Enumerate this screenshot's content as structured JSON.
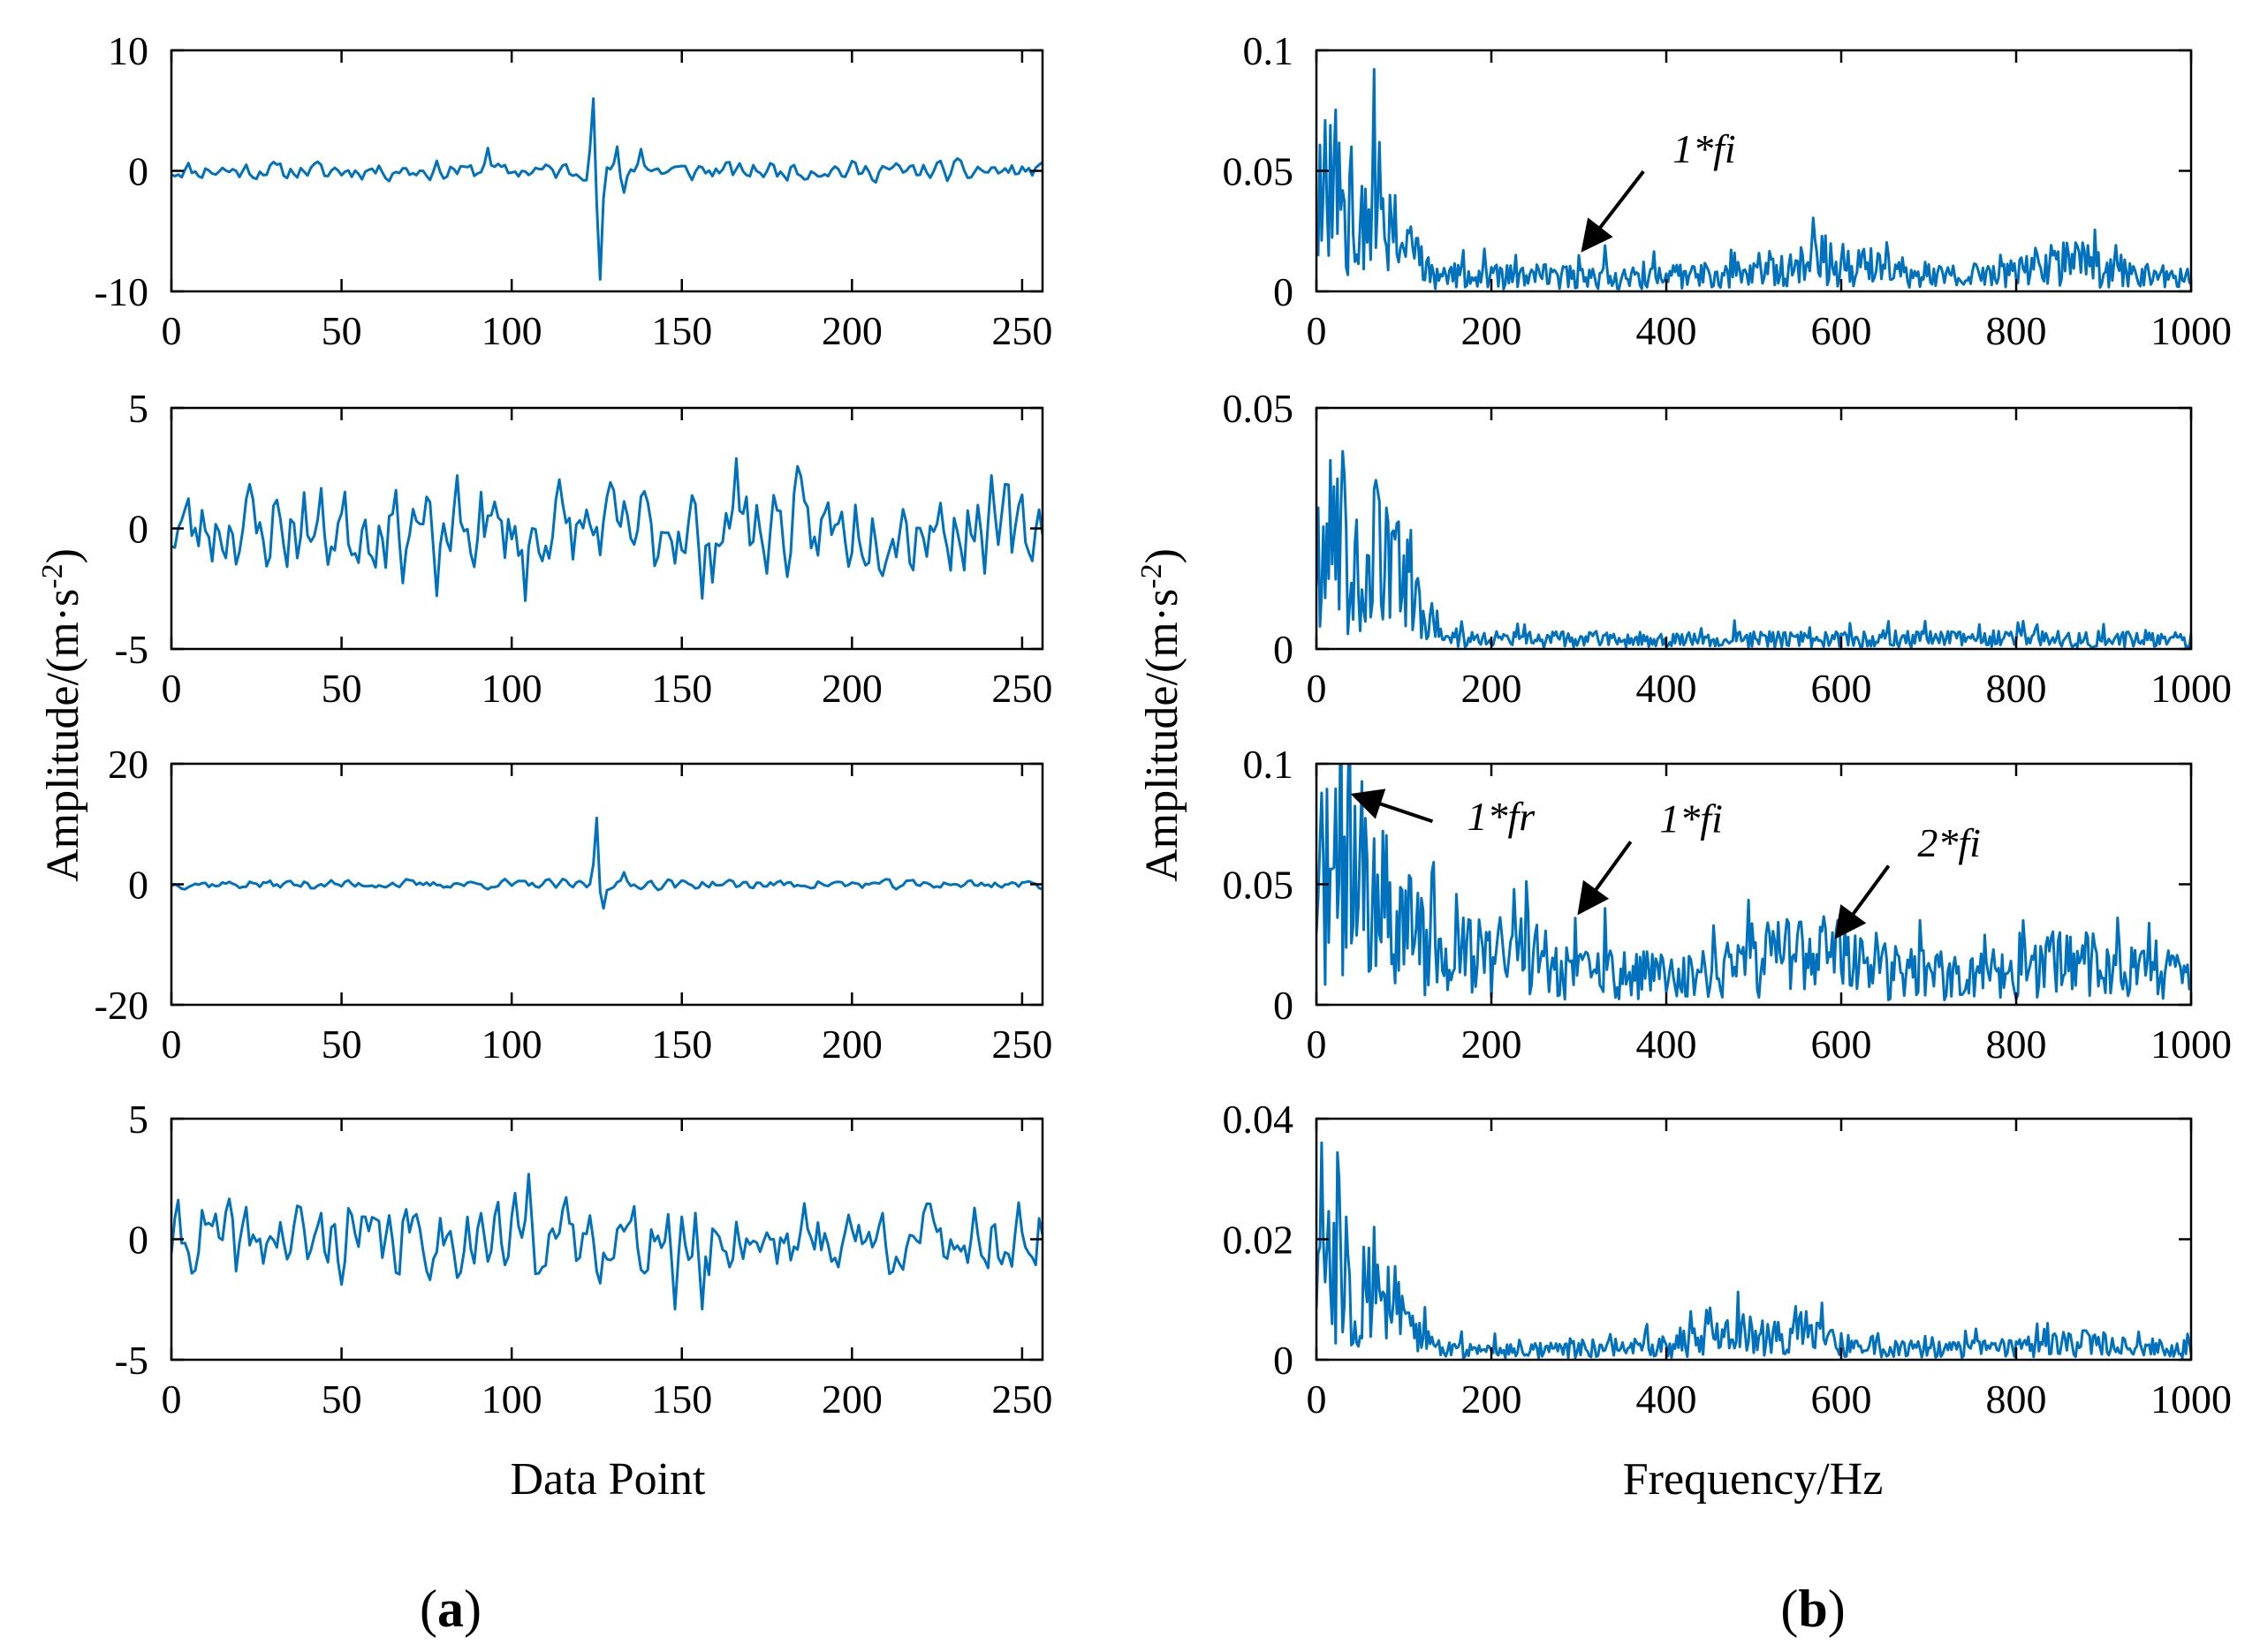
{
  "figure": {
    "left_column_ylabel": "Amplitude/(m·s",
    "right_column_ylabel": "Amplitude/(m·s",
    "ylabel_exponent": "-2",
    "ylabel_close": ")",
    "left_xlabel": "Data Point",
    "right_xlabel": "Frequency/Hz",
    "panel_a_open": "(",
    "panel_a_letter": "a",
    "panel_a_close": ")",
    "panel_b_open": "(",
    "panel_b_letter": "b",
    "panel_b_close": ")",
    "line_color": "#0072BD"
  },
  "chart_data": [
    {
      "id": "a1",
      "type": "line",
      "domain": "time",
      "title": "",
      "xlabel": "",
      "ylabel": "",
      "xlim": [
        0,
        256
      ],
      "ylim": [
        -10,
        10
      ],
      "xticks": [
        0,
        50,
        100,
        150,
        200,
        250
      ],
      "yticks": [
        -10,
        0,
        10
      ],
      "xtick_labels": [
        "0",
        "50",
        "100",
        "150",
        "200",
        "250"
      ],
      "ytick_labels": [
        "-10",
        "0",
        "10"
      ],
      "n": 256,
      "noise_amp": 0.5,
      "events": [
        {
          "x": 124,
          "amp": 6
        },
        {
          "x": 126,
          "amp": -9
        },
        {
          "x": 131,
          "amp": 2
        },
        {
          "x": 133,
          "amp": -1.8
        },
        {
          "x": 138,
          "amp": 1.8
        },
        {
          "x": 93,
          "amp": 1.9
        }
      ],
      "seed": 11,
      "annotations": []
    },
    {
      "id": "a2",
      "type": "line",
      "domain": "time",
      "title": "",
      "xlabel": "",
      "ylabel": "",
      "xlim": [
        0,
        256
      ],
      "ylim": [
        -5,
        5
      ],
      "xticks": [
        0,
        50,
        100,
        150,
        200,
        250
      ],
      "yticks": [
        -5,
        0,
        5
      ],
      "xtick_labels": [
        "0",
        "50",
        "100",
        "150",
        "200",
        "250"
      ],
      "ytick_labels": [
        "-5",
        "0",
        "5"
      ],
      "n": 256,
      "noise_amp": 1.2,
      "events": [
        {
          "x": 166,
          "amp": 2.9
        },
        {
          "x": 104,
          "amp": -3
        },
        {
          "x": 156,
          "amp": -2.9
        },
        {
          "x": 78,
          "amp": -2.8
        }
      ],
      "seed": 23,
      "annotations": []
    },
    {
      "id": "a3",
      "type": "line",
      "domain": "time",
      "title": "",
      "xlabel": "",
      "ylabel": "",
      "xlim": [
        0,
        256
      ],
      "ylim": [
        -20,
        20
      ],
      "xticks": [
        0,
        50,
        100,
        150,
        200,
        250
      ],
      "yticks": [
        -20,
        0,
        20
      ],
      "xtick_labels": [
        "0",
        "50",
        "100",
        "150",
        "200",
        "250"
      ],
      "ytick_labels": [
        "-20",
        "0",
        "20"
      ],
      "n": 256,
      "noise_amp": 0.5,
      "events": [
        {
          "x": 125,
          "amp": 11
        },
        {
          "x": 127,
          "amp": -4
        },
        {
          "x": 133,
          "amp": 2
        }
      ],
      "seed": 37,
      "annotations": []
    },
    {
      "id": "a4",
      "type": "line",
      "domain": "time",
      "title": "",
      "xlabel": "Data Point",
      "ylabel": "",
      "xlim": [
        0,
        256
      ],
      "ylim": [
        -5,
        5
      ],
      "xticks": [
        0,
        50,
        100,
        150,
        200,
        250
      ],
      "yticks": [
        -5,
        0,
        5
      ],
      "xtick_labels": [
        "0",
        "50",
        "100",
        "150",
        "200",
        "250"
      ],
      "ytick_labels": [
        "-5",
        "0",
        "5"
      ],
      "n": 256,
      "noise_amp": 1.0,
      "events": [
        {
          "x": 105,
          "amp": 2.7
        },
        {
          "x": 148,
          "amp": -2.9
        },
        {
          "x": 156,
          "amp": -2.9
        }
      ],
      "seed": 41,
      "annotations": []
    },
    {
      "id": "b1",
      "type": "line",
      "domain": "freq",
      "title": "",
      "xlabel": "",
      "ylabel": "",
      "xlim": [
        0,
        1000
      ],
      "ylim": [
        0,
        0.1
      ],
      "xticks": [
        0,
        200,
        400,
        600,
        800,
        1000
      ],
      "yticks": [
        0,
        0.05,
        0.1
      ],
      "xtick_labels": [
        "0",
        "200",
        "400",
        "600",
        "800",
        "1000"
      ],
      "ytick_labels": [
        "0",
        "0.05",
        "0.1"
      ],
      "n": 500,
      "low_peak": 0.045,
      "low_cut": 95,
      "floor": 0.006,
      "floor_bumps": [
        {
          "c": 580,
          "w": 80,
          "h": 0.006
        },
        {
          "c": 860,
          "w": 60,
          "h": 0.006
        }
      ],
      "spikes": [
        {
          "x": 40,
          "v": 0.06
        },
        {
          "x": 20,
          "v": 0.055
        },
        {
          "x": 300,
          "v": 0.015
        },
        {
          "x": 330,
          "v": 0.019
        }
      ],
      "seed": 53,
      "annotations": [
        {
          "text": "1*fi",
          "x": 300,
          "y": 0.015,
          "tx": 385,
          "ty": 0.055
        }
      ]
    },
    {
      "id": "b2",
      "type": "line",
      "domain": "freq",
      "title": "",
      "xlabel": "",
      "ylabel": "",
      "xlim": [
        0,
        1000
      ],
      "ylim": [
        0,
        0.05
      ],
      "xticks": [
        0,
        200,
        400,
        600,
        800,
        1000
      ],
      "yticks": [
        0,
        0.05
      ],
      "xtick_labels": [
        "0",
        "200",
        "400",
        "600",
        "800",
        "1000"
      ],
      "ytick_labels": [
        "0",
        "0.05"
      ],
      "n": 500,
      "low_peak": 0.022,
      "low_cut": 110,
      "floor": 0.002,
      "floor_bumps": [],
      "spikes": [
        {
          "x": 30,
          "v": 0.041
        },
        {
          "x": 68,
          "v": 0.035
        },
        {
          "x": 12,
          "v": 0.026
        }
      ],
      "seed": 67,
      "annotations": []
    },
    {
      "id": "b3",
      "type": "line",
      "domain": "freq",
      "title": "",
      "xlabel": "",
      "ylabel": "",
      "xlim": [
        0,
        1000
      ],
      "ylim": [
        0,
        0.1
      ],
      "xticks": [
        0,
        200,
        400,
        600,
        800,
        1000
      ],
      "yticks": [
        0,
        0.05,
        0.1
      ],
      "xtick_labels": [
        "0",
        "200",
        "400",
        "600",
        "800",
        "1000"
      ],
      "ytick_labels": [
        "0",
        "0.05",
        "0.1"
      ],
      "n": 500,
      "low_peak": 0.05,
      "low_cut": 110,
      "floor": 0.012,
      "floor_bumps": [
        {
          "c": 210,
          "w": 70,
          "h": 0.01
        },
        {
          "c": 560,
          "w": 70,
          "h": 0.01
        },
        {
          "c": 860,
          "w": 60,
          "h": 0.006
        }
      ],
      "spikes": [
        {
          "x": 35,
          "v": 0.088
        },
        {
          "x": 296,
          "v": 0.036
        },
        {
          "x": 330,
          "v": 0.04
        },
        {
          "x": 590,
          "v": 0.03
        },
        {
          "x": 850,
          "v": 0.03
        },
        {
          "x": 880,
          "v": 0.03
        }
      ],
      "seed": 71,
      "annotations": [
        {
          "text": "1*fr",
          "x": 35,
          "y": 0.088,
          "tx": 150,
          "ty": 0.074
        },
        {
          "text": "1*fi",
          "x": 296,
          "y": 0.036,
          "tx": 370,
          "ty": 0.073
        },
        {
          "text": "2*fi",
          "x": 590,
          "y": 0.026,
          "tx": 665,
          "ty": 0.063
        }
      ]
    },
    {
      "id": "b4",
      "type": "line",
      "domain": "freq",
      "title": "",
      "xlabel": "Frequency/Hz",
      "ylabel": "",
      "xlim": [
        0,
        1000
      ],
      "ylim": [
        0,
        0.04
      ],
      "xticks": [
        0,
        200,
        400,
        600,
        800,
        1000
      ],
      "yticks": [
        0,
        0.02,
        0.04
      ],
      "xtick_labels": [
        "0",
        "200",
        "400",
        "600",
        "800",
        "1000"
      ],
      "ytick_labels": [
        "0",
        "0.02",
        "0.04"
      ],
      "n": 500,
      "low_peak": 0.014,
      "low_cut": 95,
      "floor": 0.0018,
      "floor_bumps": [
        {
          "c": 510,
          "w": 90,
          "h": 0.0025
        },
        {
          "c": 870,
          "w": 50,
          "h": 0.001
        }
      ],
      "spikes": [
        {
          "x": 5,
          "v": 0.036
        },
        {
          "x": 25,
          "v": 0.03
        },
        {
          "x": 65,
          "v": 0.022
        },
        {
          "x": 560,
          "v": 0.008
        }
      ],
      "seed": 83,
      "annotations": []
    }
  ]
}
